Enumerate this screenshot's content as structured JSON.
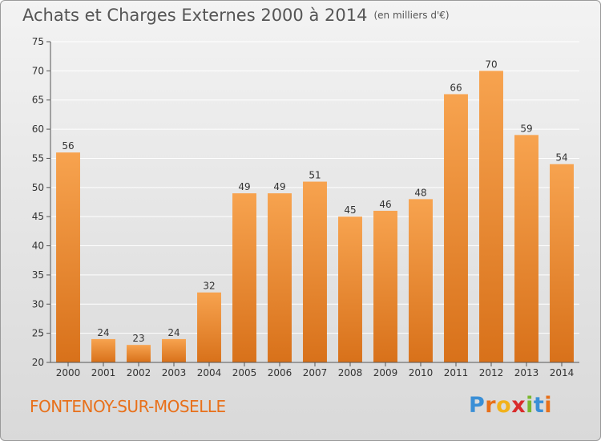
{
  "header": {
    "title": "Achats et Charges Externes 2000 à 2014",
    "subtitle": "(en milliers d'€)"
  },
  "footer": {
    "commune": "FONTENOY-SUR-MOSELLE",
    "logo_letters": [
      "P",
      "r",
      "o",
      "x",
      "i",
      "t",
      "i"
    ],
    "logo_colors": [
      "#3a8fd6",
      "#e8701a",
      "#f2b21b",
      "#d92b2b",
      "#7ab82e",
      "#3a8fd6",
      "#e8701a"
    ]
  },
  "chart_data": {
    "type": "bar",
    "title": "Achats et Charges Externes 2000 à 2014",
    "subtitle": "(en milliers d'€)",
    "categories": [
      "2000",
      "2001",
      "2002",
      "2003",
      "2004",
      "2005",
      "2006",
      "2007",
      "2008",
      "2009",
      "2010",
      "2011",
      "2012",
      "2013",
      "2014"
    ],
    "values": [
      56,
      24,
      23,
      24,
      32,
      49,
      49,
      51,
      45,
      46,
      48,
      66,
      70,
      59,
      54
    ],
    "ylim": [
      20,
      75
    ],
    "yticks": [
      20,
      25,
      30,
      35,
      40,
      45,
      50,
      55,
      60,
      65,
      70,
      75
    ],
    "grid": true,
    "colors": {
      "bar_top": "#f7a34f",
      "bar_bottom": "#d8711a",
      "grid": "#ffffff",
      "text": "#333333"
    }
  }
}
